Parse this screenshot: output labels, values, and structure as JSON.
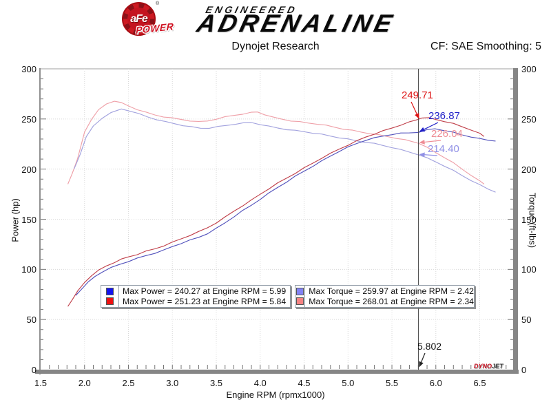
{
  "header": {
    "logo_afe": "aFe",
    "logo_reg": "®",
    "logo_power": "POWER",
    "engineered": "ENGINEERED",
    "adrenaline": "ADRENALINE"
  },
  "subheader": {
    "title": "Dynojet Research",
    "smoothing": "CF: SAE Smoothing: 5"
  },
  "watermark": {
    "dyno": "DYNO",
    "jet": "JET"
  },
  "legend": {
    "boxes": [
      {
        "rows": [
          {
            "swatch_color": "#1414ee",
            "text": "Max Power = 240.27 at Engine RPM = 5.99"
          },
          {
            "swatch_color": "#ee1111",
            "text": "Max Power = 251.23 at Engine RPM = 5.84"
          }
        ]
      },
      {
        "rows": [
          {
            "swatch_color": "#8282f5",
            "text": "Max Torque = 259.97 at Engine RPM = 2.42"
          },
          {
            "swatch_color": "#f58282",
            "text": "Max Torque = 268.01 at Engine RPM = 2.34"
          }
        ]
      }
    ]
  },
  "chart_data": {
    "type": "line",
    "title": "Dynojet Research",
    "xlabel": "Engine RPM (rpmx1000)",
    "ylabel_left": "Power (hp)",
    "ylabel_right": "Torque (ft-lbs)",
    "xlim": [
      1.5,
      6.88
    ],
    "ylim": [
      0,
      300
    ],
    "grid": true,
    "x_ticks": [
      {
        "v": 1.5,
        "label": "1.5"
      },
      {
        "v": 2.0,
        "label": "2.0"
      },
      {
        "v": 2.5,
        "label": "2.5"
      },
      {
        "v": 3.0,
        "label": "3.0"
      },
      {
        "v": 3.5,
        "label": "3.5"
      },
      {
        "v": 4.0,
        "label": "4.0"
      },
      {
        "v": 4.5,
        "label": "4.5"
      },
      {
        "v": 5.0,
        "label": "5.0"
      },
      {
        "v": 5.5,
        "label": "5.5"
      },
      {
        "v": 6.0,
        "label": "6.0"
      },
      {
        "v": 6.5,
        "label": "6.5"
      }
    ],
    "y_ticks": [
      {
        "v": 0,
        "label": "0"
      },
      {
        "v": 50,
        "label": "50"
      },
      {
        "v": 100,
        "label": "100"
      },
      {
        "v": 150,
        "label": "150"
      },
      {
        "v": 200,
        "label": "200"
      },
      {
        "v": 250,
        "label": "250"
      },
      {
        "v": 300,
        "label": "300"
      }
    ],
    "x_minor_step": 0.1,
    "y_minor_step": 10,
    "cursor": {
      "x": 5.802,
      "label": "5.802"
    },
    "cursor_labels": [
      {
        "value": 249.71,
        "text": "249.71",
        "color": "#dd1414"
      },
      {
        "value": 236.87,
        "text": "236.87",
        "color": "#2020c8"
      },
      {
        "value": 226.04,
        "text": "226.04",
        "color": "#ef8d95"
      },
      {
        "value": 214.4,
        "text": "214.40",
        "color": "#9090e6"
      }
    ],
    "series": [
      {
        "name": "torque-red",
        "color": "#efa0a8",
        "points": [
          [
            1.81,
            185
          ],
          [
            1.86,
            196
          ],
          [
            1.92,
            210
          ],
          [
            2.0,
            237
          ],
          [
            2.08,
            250
          ],
          [
            2.16,
            259
          ],
          [
            2.25,
            265
          ],
          [
            2.34,
            268.01
          ],
          [
            2.42,
            266
          ],
          [
            2.5,
            263
          ],
          [
            2.6,
            259.5
          ],
          [
            2.7,
            256.5
          ],
          [
            2.8,
            254
          ],
          [
            2.9,
            252.2
          ],
          [
            3.0,
            250.8
          ],
          [
            3.1,
            249.6
          ],
          [
            3.2,
            248.2
          ],
          [
            3.3,
            247.2
          ],
          [
            3.4,
            248
          ],
          [
            3.5,
            250
          ],
          [
            3.6,
            252
          ],
          [
            3.7,
            253.6
          ],
          [
            3.8,
            255
          ],
          [
            3.9,
            256.4
          ],
          [
            3.97,
            257
          ],
          [
            4.05,
            254.5
          ],
          [
            4.15,
            251.5
          ],
          [
            4.25,
            249.8
          ],
          [
            4.35,
            248.2
          ],
          [
            4.45,
            247
          ],
          [
            4.55,
            246
          ],
          [
            4.65,
            245
          ],
          [
            4.75,
            243.5
          ],
          [
            4.85,
            241.8
          ],
          [
            4.95,
            240
          ],
          [
            5.05,
            238.5
          ],
          [
            5.15,
            237
          ],
          [
            5.25,
            235.5
          ],
          [
            5.35,
            234
          ],
          [
            5.45,
            232.5
          ],
          [
            5.55,
            230.8
          ],
          [
            5.65,
            229
          ],
          [
            5.72,
            227.8
          ],
          [
            5.802,
            226.04
          ],
          [
            5.9,
            221.5
          ],
          [
            6.0,
            216.5
          ],
          [
            6.1,
            211.5
          ],
          [
            6.2,
            206
          ],
          [
            6.3,
            200
          ],
          [
            6.4,
            194
          ],
          [
            6.5,
            188
          ],
          [
            6.55,
            185
          ]
        ]
      },
      {
        "name": "torque-blue",
        "color": "#a2a2de",
        "points": [
          [
            1.88,
            200
          ],
          [
            1.95,
            215
          ],
          [
            2.02,
            232
          ],
          [
            2.1,
            243
          ],
          [
            2.2,
            251
          ],
          [
            2.3,
            256
          ],
          [
            2.42,
            259.97
          ],
          [
            2.52,
            258
          ],
          [
            2.62,
            255
          ],
          [
            2.72,
            252
          ],
          [
            2.82,
            249.5
          ],
          [
            2.92,
            247.2
          ],
          [
            3.02,
            245.4
          ],
          [
            3.12,
            243.6
          ],
          [
            3.22,
            242
          ],
          [
            3.32,
            240.8
          ],
          [
            3.42,
            241
          ],
          [
            3.52,
            242.2
          ],
          [
            3.62,
            243.6
          ],
          [
            3.72,
            245
          ],
          [
            3.82,
            246
          ],
          [
            3.9,
            246.5
          ],
          [
            4.0,
            244.6
          ],
          [
            4.1,
            242.6
          ],
          [
            4.2,
            241
          ],
          [
            4.3,
            239.6
          ],
          [
            4.4,
            238.4
          ],
          [
            4.5,
            237.4
          ],
          [
            4.6,
            236
          ],
          [
            4.7,
            234.6
          ],
          [
            4.8,
            233
          ],
          [
            4.9,
            231.4
          ],
          [
            5.0,
            229.8
          ],
          [
            5.1,
            228.2
          ],
          [
            5.2,
            226.8
          ],
          [
            5.3,
            225.4
          ],
          [
            5.4,
            223.6
          ],
          [
            5.5,
            221.6
          ],
          [
            5.6,
            219.2
          ],
          [
            5.7,
            217
          ],
          [
            5.802,
            214.4
          ],
          [
            5.9,
            211
          ],
          [
            6.0,
            207.2
          ],
          [
            6.1,
            203
          ],
          [
            6.2,
            198.4
          ],
          [
            6.3,
            193.6
          ],
          [
            6.4,
            188.8
          ],
          [
            6.5,
            184.2
          ],
          [
            6.6,
            180
          ],
          [
            6.68,
            177
          ]
        ]
      },
      {
        "name": "power-red",
        "color": "#c0404a",
        "points": [
          [
            1.81,
            63
          ],
          [
            1.86,
            70
          ],
          [
            1.92,
            78
          ],
          [
            2.0,
            87
          ],
          [
            2.08,
            94
          ],
          [
            2.16,
            99
          ],
          [
            2.25,
            103.5
          ],
          [
            2.34,
            107
          ],
          [
            2.42,
            110
          ],
          [
            2.5,
            112.5
          ],
          [
            2.6,
            115
          ],
          [
            2.7,
            118
          ],
          [
            2.8,
            120.5
          ],
          [
            2.9,
            123.5
          ],
          [
            3.0,
            127
          ],
          [
            3.1,
            130.5
          ],
          [
            3.2,
            134
          ],
          [
            3.3,
            137.5
          ],
          [
            3.4,
            141.5
          ],
          [
            3.5,
            146.5
          ],
          [
            3.6,
            152
          ],
          [
            3.7,
            158
          ],
          [
            3.8,
            163.5
          ],
          [
            3.9,
            169
          ],
          [
            4.0,
            175
          ],
          [
            4.1,
            180.5
          ],
          [
            4.2,
            186
          ],
          [
            4.3,
            191
          ],
          [
            4.4,
            196
          ],
          [
            4.5,
            201
          ],
          [
            4.6,
            206
          ],
          [
            4.7,
            211
          ],
          [
            4.8,
            215.5
          ],
          [
            4.9,
            220
          ],
          [
            5.0,
            224
          ],
          [
            5.1,
            228
          ],
          [
            5.2,
            232
          ],
          [
            5.3,
            235
          ],
          [
            5.4,
            238
          ],
          [
            5.5,
            241
          ],
          [
            5.6,
            244
          ],
          [
            5.7,
            246.8
          ],
          [
            5.802,
            249.71
          ],
          [
            5.84,
            251.23
          ],
          [
            5.92,
            250.9
          ],
          [
            6.0,
            249.6
          ],
          [
            6.1,
            247.6
          ],
          [
            6.2,
            245.2
          ],
          [
            6.3,
            242.3
          ],
          [
            6.4,
            239.2
          ],
          [
            6.5,
            235.4
          ],
          [
            6.55,
            232.5
          ]
        ]
      },
      {
        "name": "power-blue",
        "color": "#5252bc",
        "points": [
          [
            1.9,
            74
          ],
          [
            1.96,
            80
          ],
          [
            2.04,
            87
          ],
          [
            2.12,
            93
          ],
          [
            2.2,
            97.5
          ],
          [
            2.3,
            101.5
          ],
          [
            2.4,
            105
          ],
          [
            2.5,
            108
          ],
          [
            2.6,
            111
          ],
          [
            2.7,
            113.8
          ],
          [
            2.8,
            116.2
          ],
          [
            2.9,
            119
          ],
          [
            3.0,
            122.8
          ],
          [
            3.1,
            126
          ],
          [
            3.2,
            129
          ],
          [
            3.3,
            132
          ],
          [
            3.4,
            135.8
          ],
          [
            3.5,
            140.8
          ],
          [
            3.6,
            146.5
          ],
          [
            3.7,
            152.5
          ],
          [
            3.8,
            158.5
          ],
          [
            3.9,
            164
          ],
          [
            4.0,
            170
          ],
          [
            4.1,
            176
          ],
          [
            4.2,
            181.8
          ],
          [
            4.3,
            187.2
          ],
          [
            4.4,
            192.8
          ],
          [
            4.5,
            198
          ],
          [
            4.6,
            203
          ],
          [
            4.7,
            208
          ],
          [
            4.8,
            213
          ],
          [
            4.9,
            217.8
          ],
          [
            5.0,
            221.8
          ],
          [
            5.1,
            225.6
          ],
          [
            5.2,
            228.8
          ],
          [
            5.3,
            231
          ],
          [
            5.4,
            233
          ],
          [
            5.5,
            234.6
          ],
          [
            5.6,
            235.6
          ],
          [
            5.7,
            236.2
          ],
          [
            5.802,
            236.87
          ],
          [
            5.9,
            239
          ],
          [
            5.99,
            240.27
          ],
          [
            6.1,
            238.6
          ],
          [
            6.2,
            236.5
          ],
          [
            6.3,
            234.2
          ],
          [
            6.4,
            232.2
          ],
          [
            6.5,
            230.2
          ],
          [
            6.6,
            228.8
          ],
          [
            6.68,
            228
          ]
        ]
      }
    ]
  }
}
